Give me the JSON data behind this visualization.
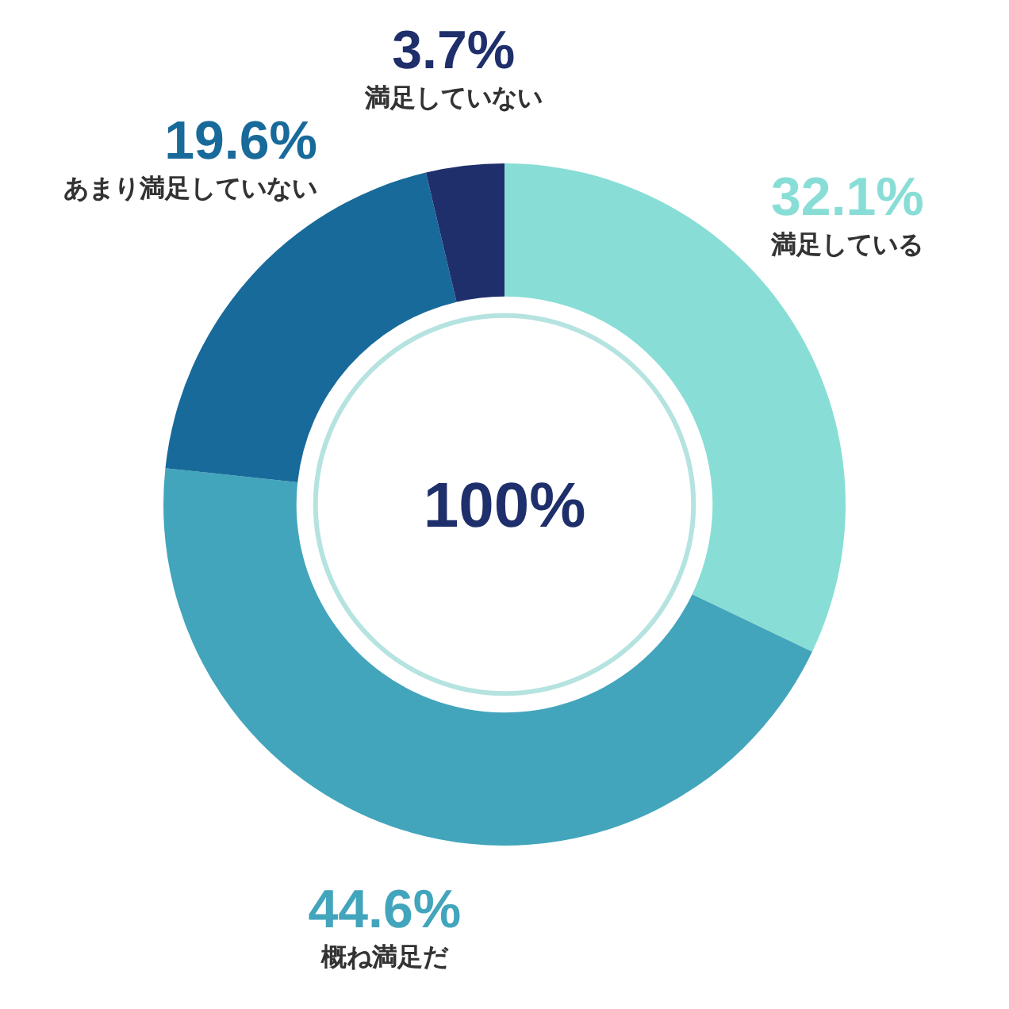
{
  "chart_data": {
    "type": "donut",
    "categories": [
      "満足している",
      "概ね満足だ",
      "あまり満足していない",
      "満足していない"
    ],
    "values": [
      32.1,
      44.6,
      19.6,
      3.7
    ],
    "value_labels": [
      "32.1%",
      "44.6%",
      "19.6%",
      "3.7%"
    ],
    "colors": [
      "#88ded6",
      "#42a5bc",
      "#186a9a",
      "#1f2f6b"
    ],
    "annotations": [
      "100%"
    ],
    "legend": false
  }
}
